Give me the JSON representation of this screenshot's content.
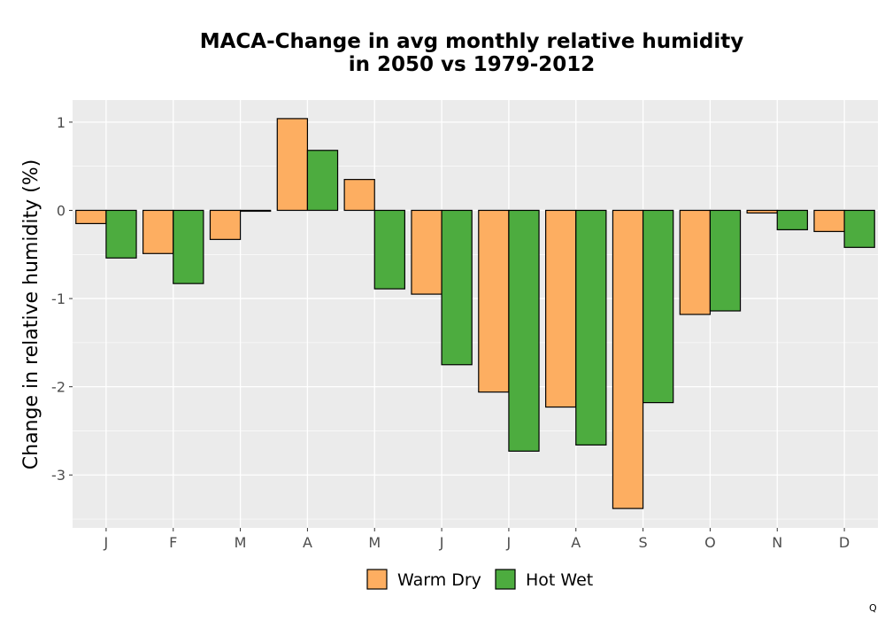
{
  "chart_data": {
    "type": "bar",
    "title": [
      "MACA-Change in avg monthly relative humidity",
      "in 2050 vs 1979-2012"
    ],
    "xlabel": "",
    "ylabel": "Change in relative humidity (%)",
    "categories": [
      "J",
      "F",
      "M",
      "A",
      "M",
      "J",
      "J",
      "A",
      "S",
      "O",
      "N",
      "D"
    ],
    "series": [
      {
        "name": "Warm Dry",
        "color": "#FDAE61",
        "values": [
          -0.15,
          -0.49,
          -0.33,
          1.04,
          0.35,
          -0.95,
          -2.06,
          -2.23,
          -3.38,
          -1.18,
          -0.03,
          -0.24
        ]
      },
      {
        "name": "Hot Wet",
        "color": "#4DAC3F",
        "values": [
          -0.54,
          -0.83,
          -0.01,
          0.68,
          -0.89,
          -1.75,
          -2.73,
          -2.66,
          -2.18,
          -1.14,
          -0.22,
          -0.42
        ]
      }
    ],
    "ylim": [
      -3.6,
      1.25
    ],
    "yticks": [
      1,
      0,
      -1,
      -2,
      -3
    ],
    "ytick_labels": [
      "1",
      "0",
      "-1",
      "-2",
      "-3"
    ],
    "grid": true,
    "legend_position": "bottom"
  },
  "corner_mark": "Q"
}
